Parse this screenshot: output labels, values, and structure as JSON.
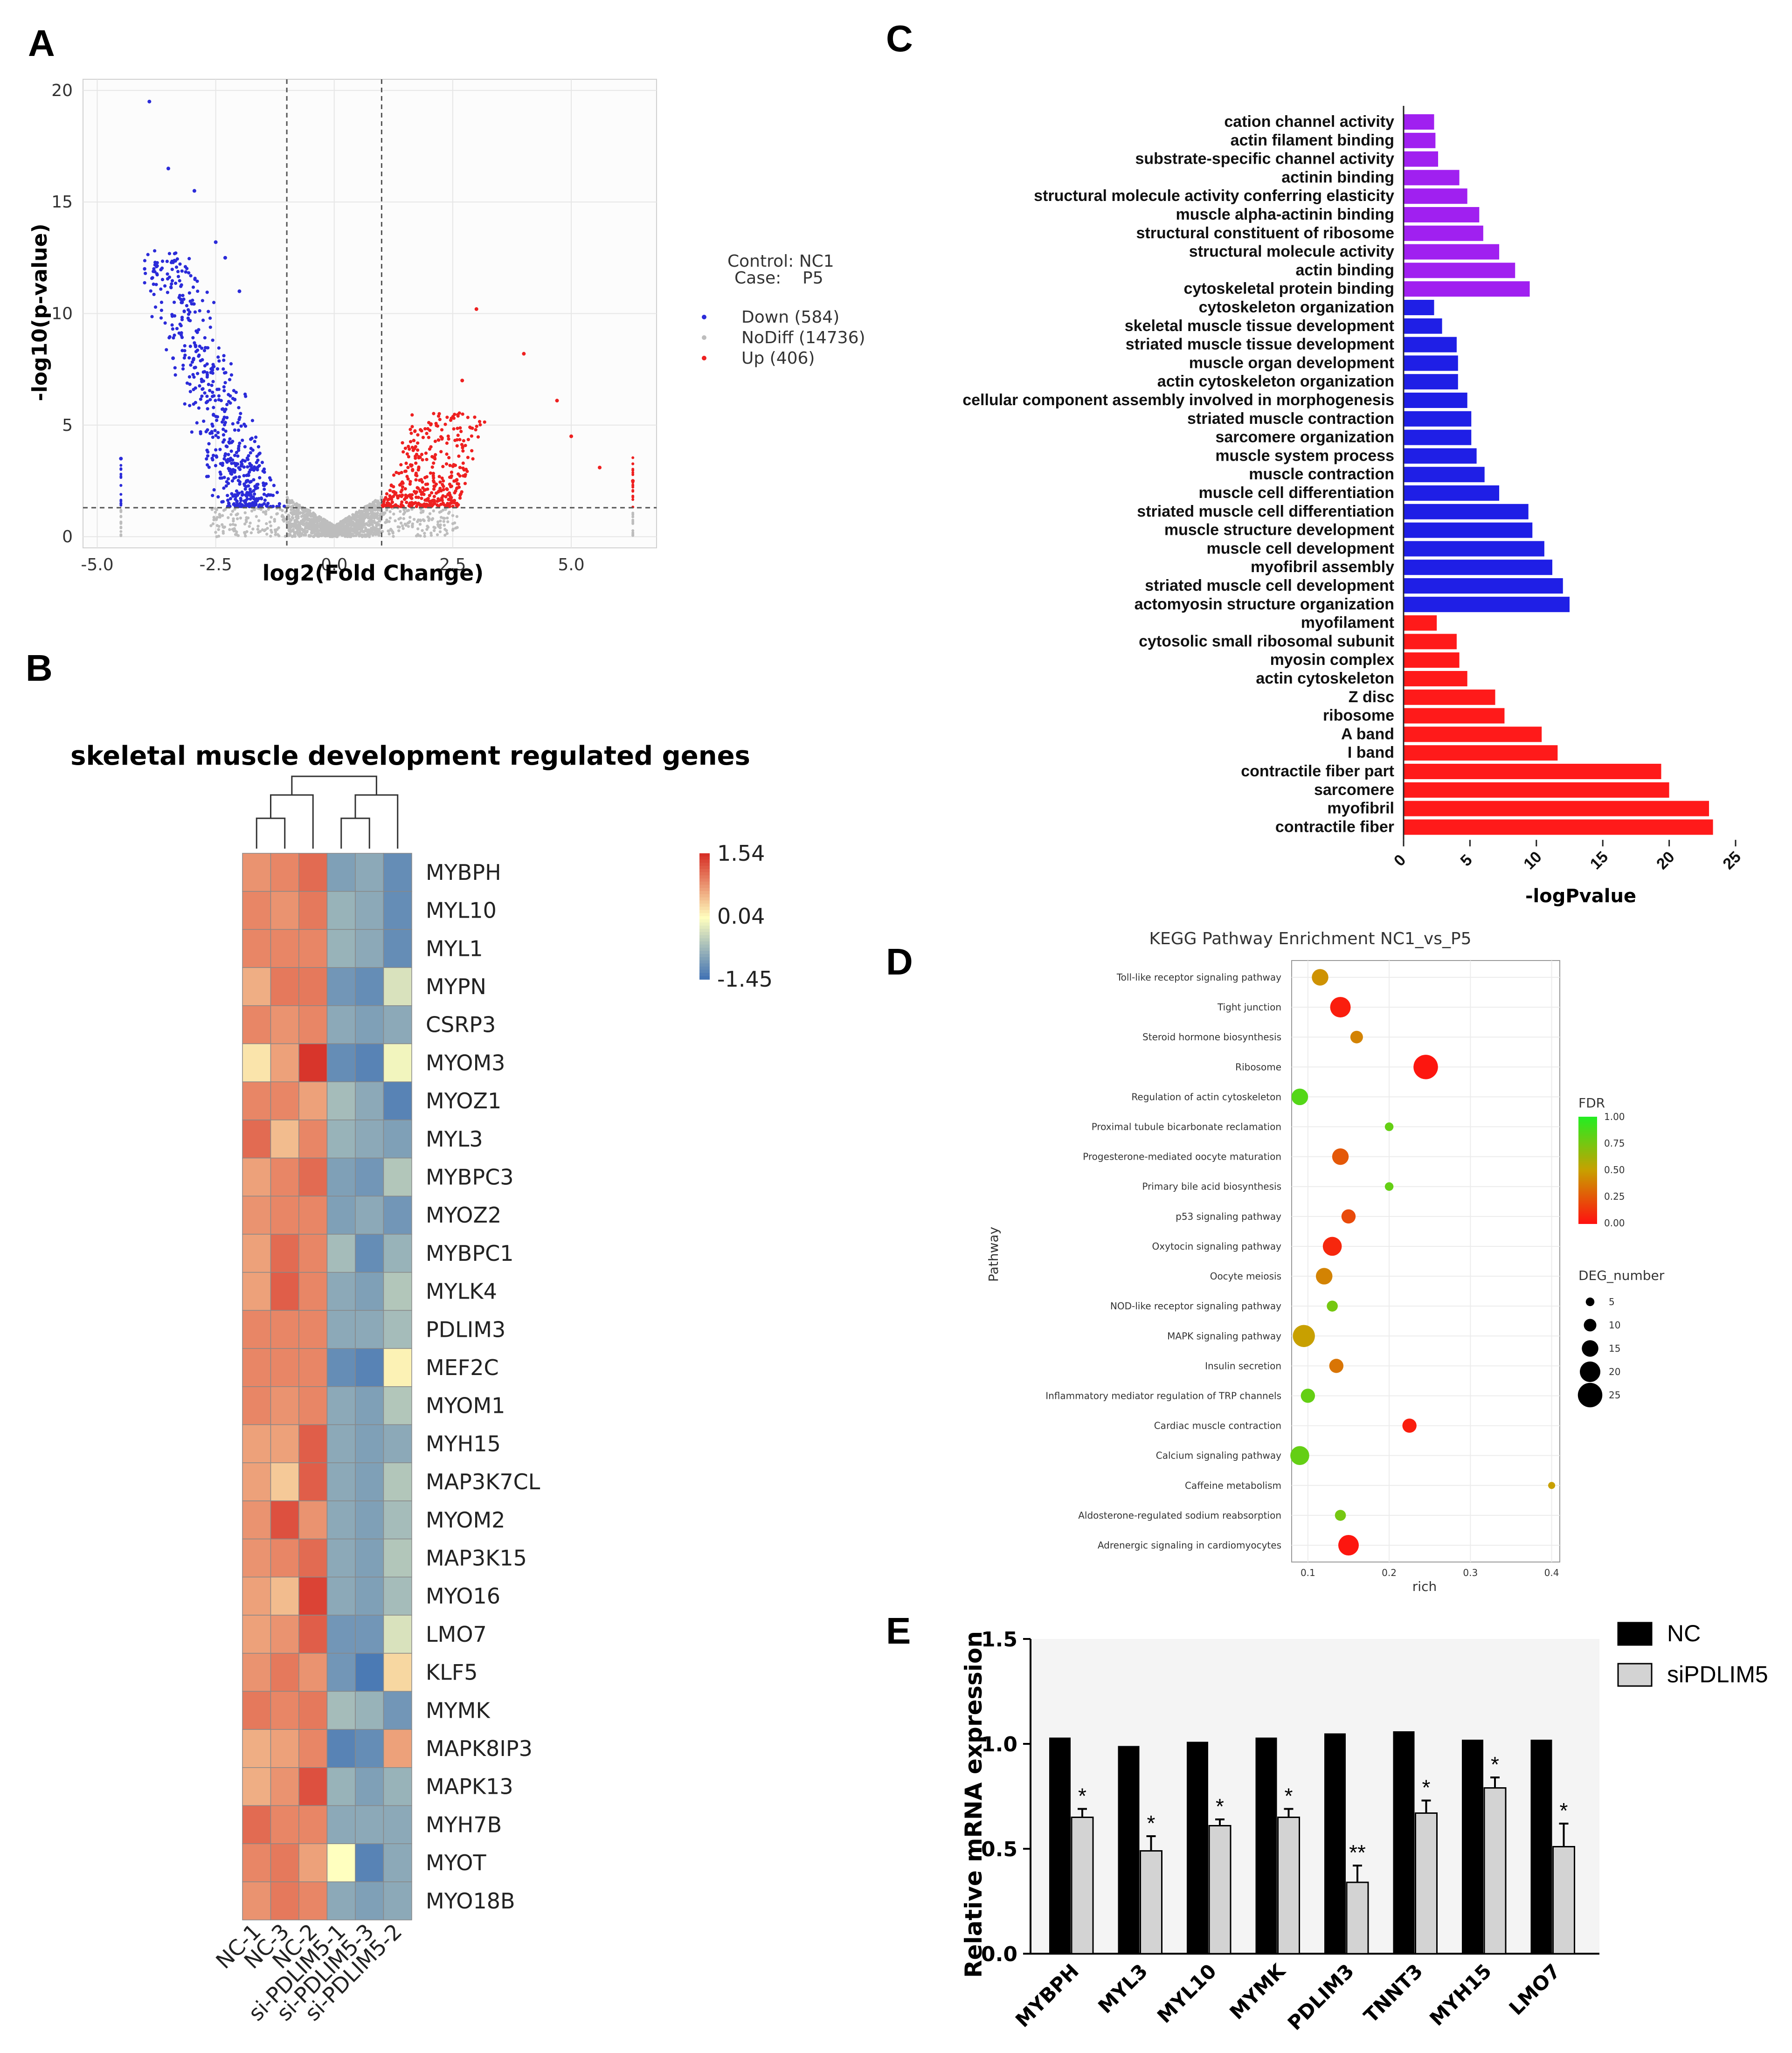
{
  "panel_labels": {
    "a": "A",
    "b": "B",
    "c": "C",
    "d": "D",
    "e": "E"
  },
  "colors": {
    "down": "#2b2bd9",
    "up": "#ee2020",
    "nodiff": "#bdbdbd",
    "mf": "#a020f0",
    "bp": "#1f1fe6",
    "cc": "#ff1a1a",
    "nc_bar": "#000000",
    "si_bar": "#d3d3d3"
  },
  "chart_data": [
    {
      "panel": "A",
      "type": "scatter",
      "title": "",
      "xlabel": "log2(Fold Change)",
      "ylabel": "-log10(p-value)",
      "xlim": [
        -5.3,
        6.8
      ],
      "ylim": [
        -0.5,
        20.5
      ],
      "xticks": [
        -5.0,
        -2.5,
        0.0,
        2.5,
        5.0
      ],
      "xtick_labels": [
        "-5.0",
        "-2.5",
        "0.0",
        "2.5",
        "5.0"
      ],
      "yticks": [
        0,
        5,
        10,
        15,
        20
      ],
      "ytick_labels": [
        "0",
        "5",
        "10",
        "15",
        "20"
      ],
      "vlines": [
        -1,
        1
      ],
      "hline": 1.3,
      "legend_header": [
        "Control: NC1",
        "Case:    P5"
      ],
      "series": [
        {
          "name": "Down (584)",
          "color": "#2b2bd9"
        },
        {
          "name": "NoDiff (14736)",
          "color": "#bdbdbd"
        },
        {
          "name": "Up (406)",
          "color": "#ee2020"
        }
      ],
      "highlight_points": [
        {
          "x": -3.9,
          "y": 19.5
        },
        {
          "x": -3.5,
          "y": 16.5
        },
        {
          "x": -2.95,
          "y": 15.5
        },
        {
          "x": -2.5,
          "y": 13.2
        },
        {
          "x": -2.3,
          "y": 12.5
        },
        {
          "x": -2.0,
          "y": 11.0
        },
        {
          "x": -3.4,
          "y": 8.0
        },
        {
          "x": -4.5,
          "y": 3.5
        },
        {
          "x": 3.0,
          "y": 10.2
        },
        {
          "x": 4.0,
          "y": 8.2
        },
        {
          "x": 2.7,
          "y": 7.0
        },
        {
          "x": 4.7,
          "y": 6.1
        },
        {
          "x": 5.0,
          "y": 4.5
        },
        {
          "x": 5.6,
          "y": 3.1
        },
        {
          "x": 6.3,
          "y": 2.5
        }
      ]
    },
    {
      "panel": "B",
      "type": "heatmap",
      "title": "skeletal muscle development regulated genes",
      "columns": [
        "NC-1",
        "NC-3",
        "NC-2",
        "si-PDLIM5-1",
        "si-PDLIM5-3",
        "si-PDLIM5-2"
      ],
      "rows": [
        "MYBPH",
        "MYL10",
        "MYL1",
        "MYPN",
        "CSRP3",
        "MYOM3",
        "MYOZ1",
        "MYL3",
        "MYBPC3",
        "MYOZ2",
        "MYBPC1",
        "MYLK4",
        "PDLIM3",
        "MEF2C",
        "MYOM1",
        "MYH15",
        "MAP3K7CL",
        "MYOM2",
        "MAP3K15",
        "MYO16",
        "LMO7",
        "KLF5",
        "MYMK",
        "MAPK8IP3",
        "MAPK13",
        "MYH7B",
        "MYOT",
        "MYO18B"
      ],
      "values": [
        [
          0.8,
          0.9,
          1.1,
          -1.0,
          -0.9,
          -1.2
        ],
        [
          0.9,
          0.8,
          1.0,
          -0.8,
          -0.9,
          -1.2
        ],
        [
          0.9,
          0.9,
          0.9,
          -0.8,
          -0.9,
          -1.2
        ],
        [
          0.6,
          1.0,
          1.0,
          -1.1,
          -1.2,
          -0.3
        ],
        [
          0.9,
          0.8,
          0.9,
          -0.9,
          -1.0,
          -0.9
        ],
        [
          0.2,
          0.7,
          1.5,
          -1.2,
          -1.3,
          -0.1
        ],
        [
          0.9,
          0.9,
          0.7,
          -0.7,
          -0.9,
          -1.3
        ],
        [
          1.1,
          0.5,
          0.9,
          -0.8,
          -0.9,
          -1.0
        ],
        [
          0.7,
          0.9,
          1.1,
          -1.0,
          -1.1,
          -0.6
        ],
        [
          0.8,
          0.9,
          0.9,
          -1.0,
          -0.9,
          -1.1
        ],
        [
          0.7,
          1.1,
          0.9,
          -0.7,
          -1.2,
          -0.8
        ],
        [
          0.7,
          1.2,
          0.9,
          -0.9,
          -1.0,
          -0.6
        ],
        [
          0.9,
          0.9,
          0.9,
          -0.9,
          -0.9,
          -0.7
        ],
        [
          0.9,
          0.9,
          0.9,
          -1.2,
          -1.3,
          0.1
        ],
        [
          0.9,
          0.8,
          0.9,
          -0.9,
          -1.0,
          -0.6
        ],
        [
          0.7,
          0.7,
          1.2,
          -0.9,
          -1.0,
          -0.9
        ],
        [
          0.7,
          0.4,
          1.2,
          -0.9,
          -1.0,
          -0.6
        ],
        [
          0.8,
          1.3,
          0.8,
          -0.9,
          -1.0,
          -0.7
        ],
        [
          0.8,
          0.9,
          1.1,
          -0.9,
          -1.0,
          -0.6
        ],
        [
          0.7,
          0.5,
          1.4,
          -0.9,
          -1.0,
          -0.7
        ],
        [
          0.7,
          0.8,
          1.2,
          -1.1,
          -1.1,
          -0.3
        ],
        [
          0.8,
          1.0,
          0.8,
          -1.1,
          -1.4,
          0.3
        ],
        [
          1.0,
          0.9,
          1.0,
          -0.7,
          -0.8,
          -1.1
        ],
        [
          0.6,
          0.7,
          0.9,
          -1.3,
          -1.2,
          0.7
        ],
        [
          0.6,
          0.8,
          1.3,
          -0.8,
          -1.0,
          -0.8
        ],
        [
          1.1,
          0.9,
          0.9,
          -0.9,
          -0.9,
          -0.9
        ],
        [
          0.9,
          1.0,
          0.7,
          0.0,
          -1.3,
          -0.9
        ],
        [
          0.8,
          1.0,
          0.9,
          -0.9,
          -1.0,
          -0.9
        ]
      ],
      "colorbar_labels": [
        "1.54",
        "0.04",
        "-1.45"
      ],
      "colorbar_range": [
        -1.45,
        1.54
      ]
    },
    {
      "panel": "C",
      "type": "bar",
      "orientation": "horizontal",
      "xlabel": "-logPvalue",
      "xticks": [
        0,
        5,
        10,
        15,
        20,
        25
      ],
      "xtick_labels": [
        "0",
        "5",
        "10",
        "15",
        "20",
        "25"
      ],
      "xlim": [
        0,
        25
      ],
      "categories": [
        "cation channel activity",
        "actin filament binding",
        "substrate-specific channel activity",
        "actinin binding",
        "structural molecule activity conferring elasticity",
        "muscle alpha-actinin binding",
        "structural constituent of ribosome",
        "structural molecule activity",
        "actin binding",
        "cytoskeletal protein binding",
        "cytoskeleton organization",
        "skeletal muscle tissue development",
        "striated muscle tissue development",
        "muscle organ development",
        "actin cytoskeleton organization",
        "cellular component assembly involved in morphogenesis",
        "striated muscle contraction",
        "sarcomere organization",
        "muscle system process",
        "muscle contraction",
        "muscle cell differentiation",
        "striated muscle cell differentiation",
        "muscle structure development",
        "muscle cell development",
        "myofibril assembly",
        "striated muscle cell development",
        "actomyosin structure organization",
        "myofilament",
        "cytosolic small ribosomal subunit",
        "myosin complex",
        "actin cytoskeleton",
        "Z disc",
        "ribosome",
        "A band",
        "I band",
        "contractile fiber part",
        "sarcomere",
        "myofibril",
        "contractile fiber"
      ],
      "values": [
        2.3,
        2.4,
        2.6,
        4.2,
        4.8,
        5.7,
        6.0,
        7.2,
        8.4,
        9.5,
        2.3,
        2.9,
        4.0,
        4.1,
        4.1,
        4.8,
        5.1,
        5.1,
        5.5,
        6.1,
        7.2,
        9.4,
        9.7,
        10.6,
        11.2,
        12.0,
        12.5,
        2.5,
        4.0,
        4.2,
        4.8,
        6.9,
        7.6,
        10.4,
        11.6,
        19.4,
        20.0,
        23.0,
        23.3
      ],
      "groups": [
        "MF",
        "MF",
        "MF",
        "MF",
        "MF",
        "MF",
        "MF",
        "MF",
        "MF",
        "MF",
        "BP",
        "BP",
        "BP",
        "BP",
        "BP",
        "BP",
        "BP",
        "BP",
        "BP",
        "BP",
        "BP",
        "BP",
        "BP",
        "BP",
        "BP",
        "BP",
        "BP",
        "CC",
        "CC",
        "CC",
        "CC",
        "CC",
        "CC",
        "CC",
        "CC",
        "CC",
        "CC",
        "CC",
        "CC"
      ]
    },
    {
      "panel": "D",
      "type": "scatter",
      "title": "KEGG Pathway Enrichment  NC1_vs_P5",
      "xlabel": "rich",
      "ylabel": "Pathway",
      "xlim": [
        0.08,
        0.41
      ],
      "xticks": [
        0.1,
        0.2,
        0.3,
        0.4
      ],
      "xtick_labels": [
        "0.1",
        "0.2",
        "0.3",
        "0.4"
      ],
      "categories": [
        "Toll-like receptor signaling pathway",
        "Tight junction",
        "Steroid hormone biosynthesis",
        "Ribosome",
        "Regulation of actin cytoskeleton",
        "Proximal tubule bicarbonate reclamation",
        "Progesterone-mediated oocyte maturation",
        "Primary bile acid biosynthesis",
        "p53 signaling pathway",
        "Oxytocin signaling pathway",
        "Oocyte meiosis",
        "NOD-like receptor signaling pathway",
        "MAPK signaling pathway",
        "Insulin secretion",
        "Inflammatory mediator regulation of TRP channels",
        "Cardiac muscle contraction",
        "Calcium signaling pathway",
        "Caffeine metabolism",
        "Aldosterone-regulated sodium reabsorption",
        "Adrenergic signaling in cardiomyocytes"
      ],
      "rich": [
        0.115,
        0.14,
        0.16,
        0.245,
        0.09,
        0.2,
        0.14,
        0.2,
        0.15,
        0.13,
        0.12,
        0.13,
        0.095,
        0.135,
        0.1,
        0.225,
        0.09,
        0.4,
        0.14,
        0.15
      ],
      "fdr": [
        0.45,
        0.05,
        0.4,
        0.02,
        0.85,
        0.8,
        0.25,
        0.8,
        0.2,
        0.08,
        0.4,
        0.75,
        0.5,
        0.35,
        0.8,
        0.05,
        0.8,
        0.5,
        0.75,
        0.02
      ],
      "deg_number": [
        15,
        20,
        10,
        25,
        15,
        5,
        15,
        5,
        12,
        18,
        15,
        8,
        22,
        12,
        12,
        12,
        18,
        3,
        8,
        20
      ],
      "legend_fdr_title": "FDR",
      "legend_fdr_labels": [
        "1.00",
        "0.75",
        "0.50",
        "0.25",
        "0.00"
      ],
      "legend_size_title": "DEG_number",
      "legend_size_labels": [
        "5",
        "10",
        "15",
        "20",
        "25"
      ]
    },
    {
      "panel": "E",
      "type": "bar",
      "ylabel": "Relative mRNA expression",
      "ylim": [
        0.0,
        1.5
      ],
      "yticks": [
        0.0,
        0.5,
        1.0,
        1.5
      ],
      "ytick_labels": [
        "0.0",
        "0.5",
        "1.0",
        "1.5"
      ],
      "categories": [
        "MYBPH",
        "MYL3",
        "MYL10",
        "MYMK",
        "PDLIM3",
        "TNNT3",
        "MYH15",
        "LMO7"
      ],
      "series": [
        {
          "name": "NC",
          "values": [
            1.03,
            0.99,
            1.01,
            1.03,
            1.05,
            1.06,
            1.02,
            1.02
          ],
          "errors": [
            0,
            0,
            0,
            0,
            0,
            0,
            0,
            0
          ]
        },
        {
          "name": "siPDLIM5",
          "values": [
            0.65,
            0.49,
            0.61,
            0.65,
            0.34,
            0.67,
            0.79,
            0.51
          ],
          "errors": [
            0.04,
            0.07,
            0.03,
            0.04,
            0.08,
            0.06,
            0.05,
            0.11
          ]
        }
      ],
      "significance": [
        "*",
        "*",
        "*",
        "*",
        "**",
        "*",
        "*",
        "*"
      ]
    }
  ]
}
